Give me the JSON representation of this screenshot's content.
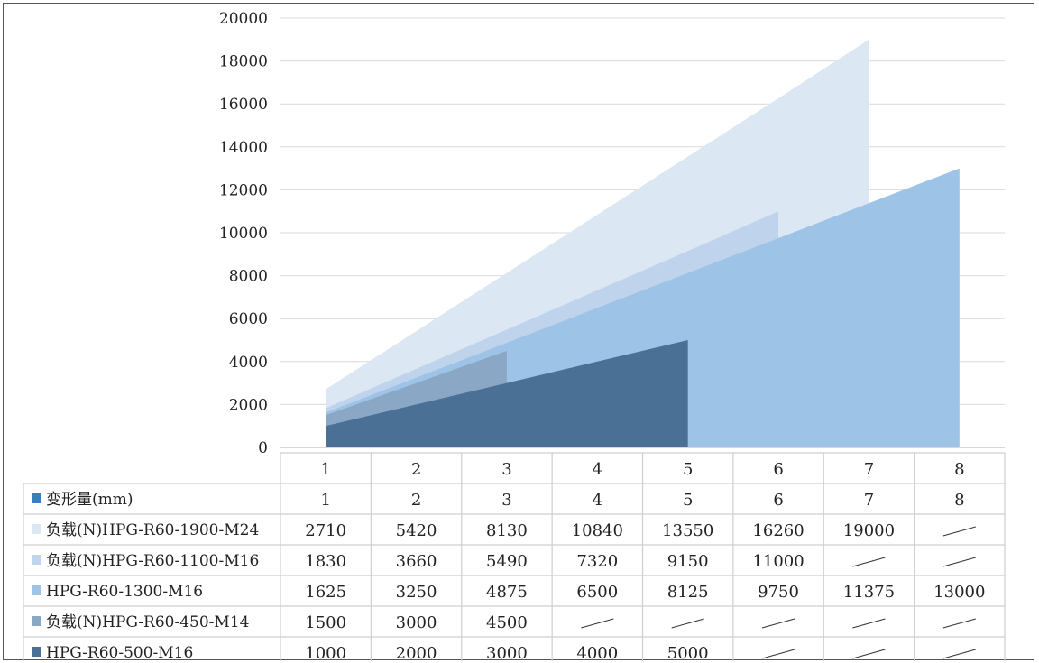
{
  "chart_data": {
    "type": "area",
    "x": [
      1,
      2,
      3,
      4,
      5,
      6,
      7,
      8
    ],
    "ylim": [
      0,
      20000
    ],
    "yticks": [
      0,
      2000,
      4000,
      6000,
      8000,
      10000,
      12000,
      14000,
      16000,
      18000,
      20000
    ],
    "grid": true,
    "legend_placement": "bottom-table",
    "header_row": [
      "1",
      "2",
      "3",
      "4",
      "5",
      "6",
      "7",
      "8"
    ],
    "first_row": {
      "name": "变形量(mm)",
      "color": "#3a7ec2",
      "values": [
        "1",
        "2",
        "3",
        "4",
        "5",
        "6",
        "7",
        "8"
      ]
    },
    "series": [
      {
        "name": "负载(N)HPG-R60-1900-M24",
        "color": "#dce7f4",
        "values": [
          2710,
          5420,
          8130,
          10840,
          13550,
          16260,
          19000,
          null
        ]
      },
      {
        "name": "负载(N)HPG-R60-1100-M16",
        "color": "#bfd4ec",
        "values": [
          1830,
          3660,
          5490,
          7320,
          9150,
          11000,
          null,
          null
        ]
      },
      {
        "name": "HPG-R60-1300-M16",
        "color": "#9dc3e6",
        "values": [
          1625,
          3250,
          4875,
          6500,
          8125,
          9750,
          11375,
          13000
        ]
      },
      {
        "name": "负载(N)HPG-R60-450-M14",
        "color": "#8aa8c6",
        "values": [
          1500,
          3000,
          4500,
          null,
          null,
          null,
          null,
          null
        ]
      },
      {
        "name": "HPG-R60-500-M16",
        "color": "#4a7096",
        "values": [
          1000,
          2000,
          3000,
          4000,
          5000,
          null,
          null,
          null
        ]
      }
    ]
  }
}
